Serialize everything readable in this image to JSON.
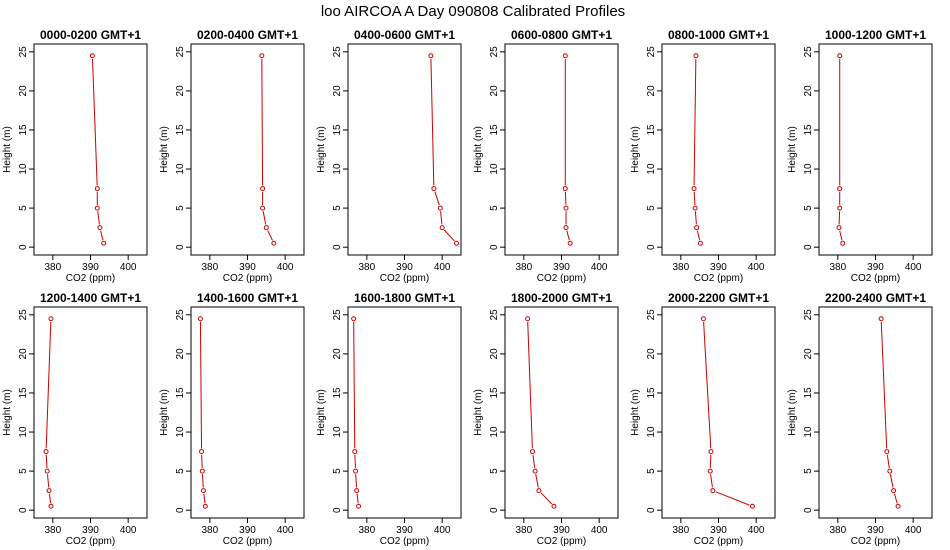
{
  "title": "loo AIRCOA A  Day 090808  Calibrated Profiles",
  "chart_data": [
    {
      "type": "line",
      "title": "0000-0200 GMT+1",
      "xlabel": "CO2 (ppm)",
      "ylabel": "Height (m)",
      "xlim": [
        375,
        405
      ],
      "ylim": [
        -1,
        26
      ],
      "xticks": [
        380,
        390,
        400
      ],
      "yticks": [
        0,
        5,
        10,
        15,
        20,
        25
      ],
      "heights": [
        0.5,
        2.5,
        5,
        7.5,
        24.5
      ],
      "values": [
        393.5,
        392.5,
        391.8,
        391.8,
        390.5
      ]
    },
    {
      "type": "line",
      "title": "0200-0400 GMT+1",
      "xlabel": "CO2 (ppm)",
      "ylabel": "Height (m)",
      "xlim": [
        375,
        405
      ],
      "ylim": [
        -1,
        26
      ],
      "xticks": [
        380,
        390,
        400
      ],
      "yticks": [
        0,
        5,
        10,
        15,
        20,
        25
      ],
      "heights": [
        0.5,
        2.5,
        5,
        7.5,
        24.5
      ],
      "values": [
        397.0,
        395.0,
        394.0,
        394.0,
        393.8
      ]
    },
    {
      "type": "line",
      "title": "0400-0600 GMT+1",
      "xlabel": "CO2 (ppm)",
      "ylabel": "Height (m)",
      "xlim": [
        375,
        405
      ],
      "ylim": [
        -1,
        26
      ],
      "xticks": [
        380,
        390,
        400
      ],
      "yticks": [
        0,
        5,
        10,
        15,
        20,
        25
      ],
      "heights": [
        0.5,
        2.5,
        5,
        7.5,
        24.5
      ],
      "values": [
        403.8,
        400.0,
        399.5,
        397.8,
        397.0
      ]
    },
    {
      "type": "line",
      "title": "0600-0800 GMT+1",
      "xlabel": "CO2 (ppm)",
      "ylabel": "Height (m)",
      "xlim": [
        375,
        405
      ],
      "ylim": [
        -1,
        26
      ],
      "xticks": [
        380,
        390,
        400
      ],
      "yticks": [
        0,
        5,
        10,
        15,
        20,
        25
      ],
      "heights": [
        0.5,
        2.5,
        5,
        7.5,
        24.5
      ],
      "values": [
        392.3,
        391.2,
        391.2,
        391.0,
        391.0
      ]
    },
    {
      "type": "line",
      "title": "0800-1000 GMT+1",
      "xlabel": "CO2 (ppm)",
      "ylabel": "Height (m)",
      "xlim": [
        375,
        405
      ],
      "ylim": [
        -1,
        26
      ],
      "xticks": [
        380,
        390,
        400
      ],
      "yticks": [
        0,
        5,
        10,
        15,
        20,
        25
      ],
      "heights": [
        0.5,
        2.5,
        5,
        7.5,
        24.5
      ],
      "values": [
        385.2,
        384.2,
        383.8,
        383.5,
        384.0
      ]
    },
    {
      "type": "line",
      "title": "1000-1200 GMT+1",
      "xlabel": "CO2 (ppm)",
      "ylabel": "Height (m)",
      "xlim": [
        375,
        405
      ],
      "ylim": [
        -1,
        26
      ],
      "xticks": [
        380,
        390,
        400
      ],
      "yticks": [
        0,
        5,
        10,
        15,
        20,
        25
      ],
      "heights": [
        0.5,
        2.5,
        5,
        7.5,
        24.5
      ],
      "values": [
        381.3,
        380.3,
        380.5,
        380.5,
        380.5
      ]
    },
    {
      "type": "line",
      "title": "1200-1400 GMT+1",
      "xlabel": "CO2 (ppm)",
      "ylabel": "Height (m)",
      "xlim": [
        375,
        405
      ],
      "ylim": [
        -1,
        26
      ],
      "xticks": [
        380,
        390,
        400
      ],
      "yticks": [
        0,
        5,
        10,
        15,
        20,
        25
      ],
      "heights": [
        0.5,
        2.5,
        5,
        7.5,
        24.5
      ],
      "values": [
        379.5,
        379.0,
        378.5,
        378.2,
        379.5
      ]
    },
    {
      "type": "line",
      "title": "1400-1600 GMT+1",
      "xlabel": "CO2 (ppm)",
      "ylabel": "Height (m)",
      "xlim": [
        375,
        405
      ],
      "ylim": [
        -1,
        26
      ],
      "xticks": [
        380,
        390,
        400
      ],
      "yticks": [
        0,
        5,
        10,
        15,
        20,
        25
      ],
      "heights": [
        0.5,
        2.5,
        5,
        7.5,
        24.5
      ],
      "values": [
        378.8,
        378.3,
        378.0,
        377.8,
        377.5
      ]
    },
    {
      "type": "line",
      "title": "1600-1800 GMT+1",
      "xlabel": "CO2 (ppm)",
      "ylabel": "Height (m)",
      "xlim": [
        375,
        405
      ],
      "ylim": [
        -1,
        26
      ],
      "xticks": [
        380,
        390,
        400
      ],
      "yticks": [
        0,
        5,
        10,
        15,
        20,
        25
      ],
      "heights": [
        0.5,
        2.5,
        5,
        7.5,
        24.5
      ],
      "values": [
        377.8,
        377.3,
        377.0,
        376.8,
        376.5
      ]
    },
    {
      "type": "line",
      "title": "1800-2000 GMT+1",
      "xlabel": "CO2 (ppm)",
      "ylabel": "Height (m)",
      "xlim": [
        375,
        405
      ],
      "ylim": [
        -1,
        26
      ],
      "xticks": [
        380,
        390,
        400
      ],
      "yticks": [
        0,
        5,
        10,
        15,
        20,
        25
      ],
      "heights": [
        0.5,
        2.5,
        5,
        7.5,
        24.5
      ],
      "values": [
        388.0,
        384.0,
        383.0,
        382.3,
        381.0
      ]
    },
    {
      "type": "line",
      "title": "2000-2200 GMT+1",
      "xlabel": "CO2 (ppm)",
      "ylabel": "Height (m)",
      "xlim": [
        375,
        405
      ],
      "ylim": [
        -1,
        26
      ],
      "xticks": [
        380,
        390,
        400
      ],
      "yticks": [
        0,
        5,
        10,
        15,
        20,
        25
      ],
      "heights": [
        0.5,
        2.5,
        5,
        7.5,
        24.5
      ],
      "values": [
        399.0,
        388.5,
        387.8,
        388.0,
        386.0
      ]
    },
    {
      "type": "line",
      "title": "2200-2400 GMT+1",
      "xlabel": "CO2 (ppm)",
      "ylabel": "Height (m)",
      "xlim": [
        375,
        405
      ],
      "ylim": [
        -1,
        26
      ],
      "xticks": [
        380,
        390,
        400
      ],
      "yticks": [
        0,
        5,
        10,
        15,
        20,
        25
      ],
      "heights": [
        0.5,
        2.5,
        5,
        7.5,
        24.5
      ],
      "values": [
        396.0,
        394.8,
        393.8,
        393.0,
        391.5
      ]
    }
  ],
  "colors": {
    "series": "#cc0000",
    "axis": "#000000"
  }
}
